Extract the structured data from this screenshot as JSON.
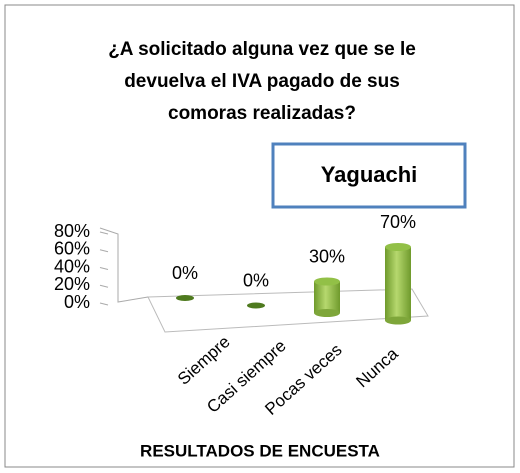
{
  "chart_data": {
    "type": "bar",
    "title": [
      "¿A solicitado alguna vez que se le",
      "devuelva el IVA pagado de sus",
      "comoras realizadas?"
    ],
    "legend_box": "Yaguachi",
    "x_label": "RESULTADOS DE ENCUESTA",
    "categories": [
      "Siempre",
      "Casi siempre",
      "Pocas veces",
      "Nunca"
    ],
    "values": [
      0,
      0,
      30,
      70
    ],
    "value_labels": [
      "0%",
      "0%",
      "30%",
      "70%"
    ],
    "color": "#92c047",
    "ylim": [
      0,
      80
    ],
    "yticks": [
      {
        "value": 0,
        "label": "0%"
      },
      {
        "value": 20,
        "label": "20%"
      },
      {
        "value": 40,
        "label": "40%"
      },
      {
        "value": 60,
        "label": "60%"
      },
      {
        "value": 80,
        "label": "80%"
      }
    ]
  }
}
